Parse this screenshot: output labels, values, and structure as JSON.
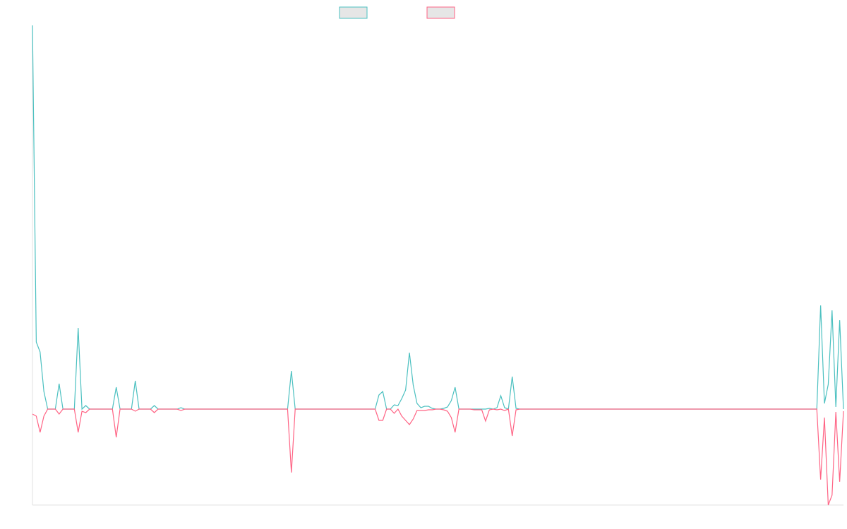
{
  "chart_data": {
    "type": "line",
    "ylim": [
      -136,
      544
    ],
    "series": [
      {
        "color": "#4bc0c0",
        "values": [
          544,
          95,
          81,
          25,
          0,
          0,
          0,
          36,
          0,
          0,
          0,
          0,
          115,
          0,
          5,
          0,
          0,
          0,
          0,
          0,
          0,
          0,
          31,
          0,
          0,
          0,
          0,
          40,
          0,
          0,
          0,
          0,
          5,
          0,
          0,
          0,
          0,
          0,
          0,
          2,
          0,
          0,
          0,
          0,
          0,
          0,
          0,
          0,
          0,
          0,
          0,
          0,
          0,
          0,
          0,
          0,
          0,
          0,
          0,
          0,
          0,
          0,
          0,
          0,
          0,
          0,
          0,
          0,
          54,
          0,
          0,
          0,
          0,
          0,
          0,
          0,
          0,
          0,
          0,
          0,
          0,
          0,
          0,
          0,
          0,
          0,
          0,
          0,
          0,
          0,
          0,
          20,
          25,
          0,
          0,
          6,
          5,
          15,
          27,
          80,
          34,
          8,
          2,
          4,
          4,
          1,
          0,
          0,
          1,
          3,
          12,
          31,
          0,
          0,
          0,
          0,
          0,
          0,
          0,
          0,
          1,
          0,
          2,
          19,
          2,
          0,
          46,
          1,
          0,
          0,
          0,
          0,
          0,
          0,
          0,
          0,
          0,
          0,
          0,
          0,
          0,
          0,
          0,
          0,
          0,
          0,
          0,
          0,
          0,
          0,
          0,
          0,
          0,
          0,
          0,
          0,
          0,
          0,
          0,
          0,
          0,
          0,
          0,
          0,
          0,
          0,
          0,
          0,
          0,
          0,
          0,
          0,
          0,
          0,
          0,
          0,
          0,
          0,
          0,
          0,
          0,
          0,
          0,
          0,
          0,
          0,
          0,
          0,
          0,
          0,
          0,
          0,
          0,
          0,
          0,
          0,
          0,
          0,
          0,
          0,
          0,
          0,
          0,
          0,
          0,
          0,
          0,
          147,
          8,
          35,
          140,
          3,
          126,
          0
        ]
      },
      {
        "color": "#ff6384",
        "values": [
          -7,
          -10,
          -33,
          -10,
          0,
          0,
          0,
          -7,
          0,
          0,
          0,
          0,
          -33,
          -3,
          -5,
          0,
          0,
          0,
          0,
          0,
          0,
          0,
          -40,
          0,
          0,
          0,
          0,
          -3,
          0,
          0,
          0,
          0,
          -5,
          0,
          0,
          0,
          0,
          0,
          0,
          -2,
          0,
          0,
          0,
          0,
          0,
          0,
          0,
          0,
          0,
          0,
          0,
          0,
          0,
          0,
          0,
          0,
          0,
          0,
          0,
          0,
          0,
          0,
          0,
          0,
          0,
          0,
          0,
          0,
          -90,
          0,
          0,
          0,
          0,
          0,
          0,
          0,
          0,
          0,
          0,
          0,
          0,
          0,
          0,
          0,
          0,
          0,
          0,
          0,
          0,
          0,
          0,
          -16,
          -16,
          0,
          0,
          -6,
          0,
          -10,
          -16,
          -22,
          -14,
          -2,
          -2,
          -2,
          -1,
          -1,
          0,
          0,
          -1,
          -3,
          -12,
          -33,
          0,
          0,
          0,
          0,
          -1,
          -1,
          -1,
          -17,
          -1,
          0,
          -1,
          0,
          -2,
          0,
          -38,
          -1,
          0,
          0,
          0,
          0,
          0,
          0,
          0,
          0,
          0,
          0,
          0,
          0,
          0,
          0,
          0,
          0,
          0,
          0,
          0,
          0,
          0,
          0,
          0,
          0,
          0,
          0,
          0,
          0,
          0,
          0,
          0,
          0,
          0,
          0,
          0,
          0,
          0,
          0,
          0,
          0,
          0,
          0,
          0,
          0,
          0,
          0,
          0,
          0,
          0,
          0,
          0,
          0,
          0,
          0,
          0,
          0,
          0,
          0,
          0,
          0,
          0,
          0,
          0,
          0,
          0,
          0,
          0,
          0,
          0,
          0,
          0,
          0,
          0,
          0,
          0,
          0,
          0,
          0,
          0,
          -100,
          -12,
          -136,
          -122,
          -4,
          -103,
          -3
        ]
      }
    ]
  }
}
